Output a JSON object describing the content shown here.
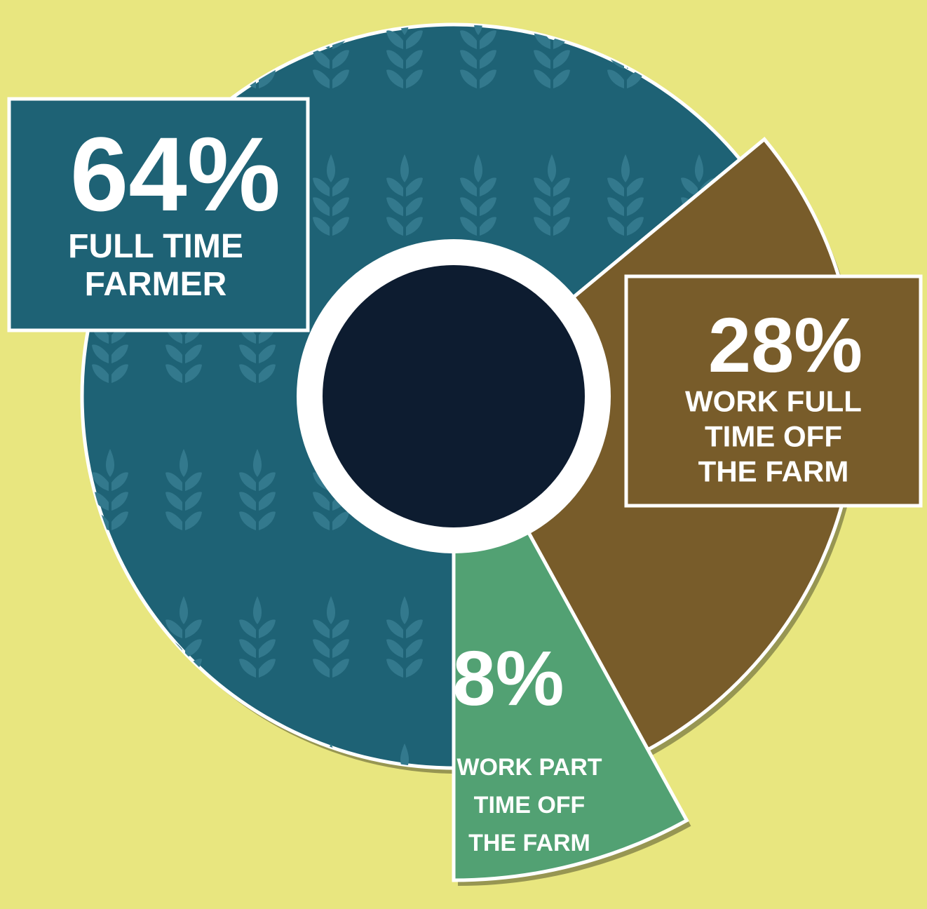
{
  "chart_data": {
    "type": "donut",
    "categories": [
      [
        "FULL TIME",
        "FARMER"
      ],
      [
        "WORK FULL",
        "TIME OFF",
        "THE FARM"
      ],
      [
        "WORK PART",
        "TIME OFF",
        "THE FARM"
      ]
    ],
    "values": [
      64,
      28,
      8
    ],
    "value_labels": [
      "64%",
      "28%",
      "8%"
    ],
    "colors": [
      "#1e6275",
      "#785c2a",
      "#52a173"
    ]
  }
}
